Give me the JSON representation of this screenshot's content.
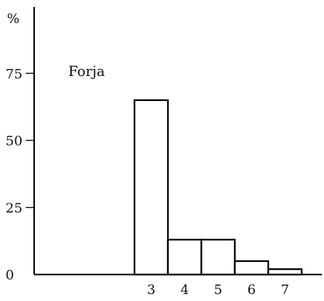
{
  "chart_data": {
    "type": "bar",
    "title": "",
    "annotation": "Forja",
    "ylabel": "%",
    "xlabel": "",
    "categories": [
      "3",
      "4",
      "5",
      "6",
      "7"
    ],
    "values": [
      65,
      13,
      13,
      5,
      2
    ],
    "ylim": [
      0,
      100
    ],
    "yticks": [
      "0",
      "25",
      "50",
      "75"
    ],
    "grid": false,
    "legend": "none"
  }
}
